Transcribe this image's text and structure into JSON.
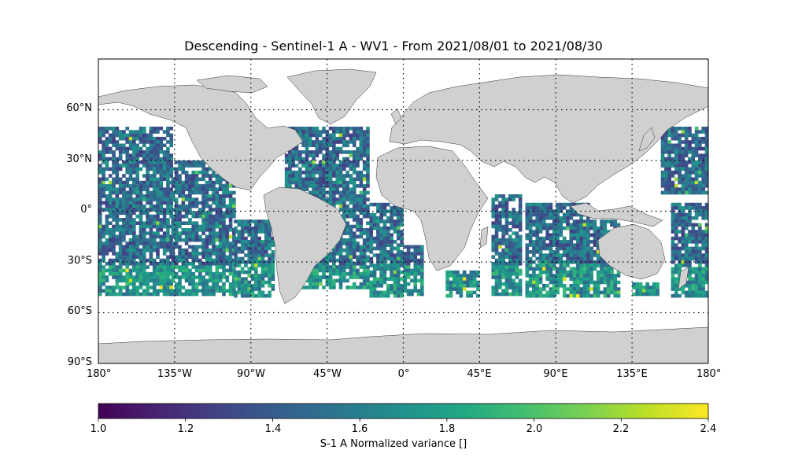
{
  "title": "Descending - Sentinel-1 A - WV1 - From 2021/08/01 to 2021/08/30",
  "map": {
    "projection": "plate-carree",
    "lon_range": [
      -180,
      180
    ],
    "lat_range": [
      -90,
      90
    ],
    "gridlines": "dotted",
    "grid_lons": [
      -135,
      -90,
      -45,
      0,
      45,
      90,
      135,
      180
    ],
    "grid_lats": [
      60,
      30,
      0,
      -30,
      -60
    ],
    "land_color": "#d0d0d0",
    "coastline_color": "#333333"
  },
  "lat_tick_labels": [
    "60°N",
    "30°N",
    "0°",
    "30°S",
    "60°S",
    "90°S"
  ],
  "lon_tick_labels": [
    "180°",
    "135°W",
    "90°W",
    "45°W",
    "0°",
    "45°E",
    "90°E",
    "135°E",
    "180°"
  ],
  "colorbar": {
    "colormap": "viridis",
    "min": 1.0,
    "max": 2.4,
    "tick_labels": [
      "1.0",
      "1.2",
      "1.4",
      "1.6",
      "1.8",
      "2.0",
      "2.2",
      "2.4"
    ],
    "label": "S-1 A Normalized variance []"
  }
}
